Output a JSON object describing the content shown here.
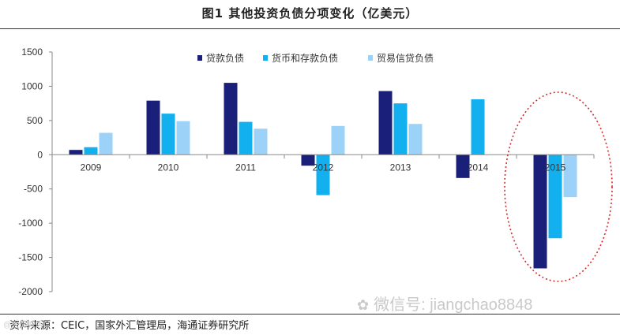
{
  "header": {
    "title": "图1  其他投资负债分项变化（亿美元）"
  },
  "chart_data": {
    "type": "bar",
    "title": "图1  其他投资负债分项变化（亿美元）",
    "categories": [
      "2009",
      "2010",
      "2011",
      "2012",
      "2013",
      "2014",
      "2015"
    ],
    "series": [
      {
        "name": "贷款负债",
        "color": "#1a1f7a",
        "values": [
          70,
          790,
          1050,
          -160,
          930,
          -340,
          -1660
        ]
      },
      {
        "name": "货币和存款负债",
        "color": "#12b0ee",
        "values": [
          110,
          600,
          480,
          -590,
          750,
          810,
          -1220
        ]
      },
      {
        "name": "贸易信贷负债",
        "color": "#9dd2f8",
        "values": [
          320,
          490,
          380,
          420,
          450,
          0,
          -620
        ]
      }
    ],
    "ylim": [
      -2000,
      1500
    ],
    "yticks": [
      "1500",
      "1000",
      "500",
      "0",
      "-500",
      "-1000",
      "-1500",
      "-2000"
    ],
    "ytick_values": [
      1500,
      1000,
      500,
      0,
      -500,
      -1000,
      -1500,
      -2000
    ],
    "xlabel": "",
    "ylabel": "",
    "legend_position": "top",
    "highlight": {
      "category": "2015",
      "shape": "dotted-ellipse",
      "color": "#d62828"
    }
  },
  "footer": {
    "source": "资料来源：CEIC，国家外汇管理局，海通证券研究所"
  },
  "watermark": {
    "text": "微信号: jiangchao8848",
    "icon": "wechat-icon",
    "small_text": "@大侃喊话"
  }
}
